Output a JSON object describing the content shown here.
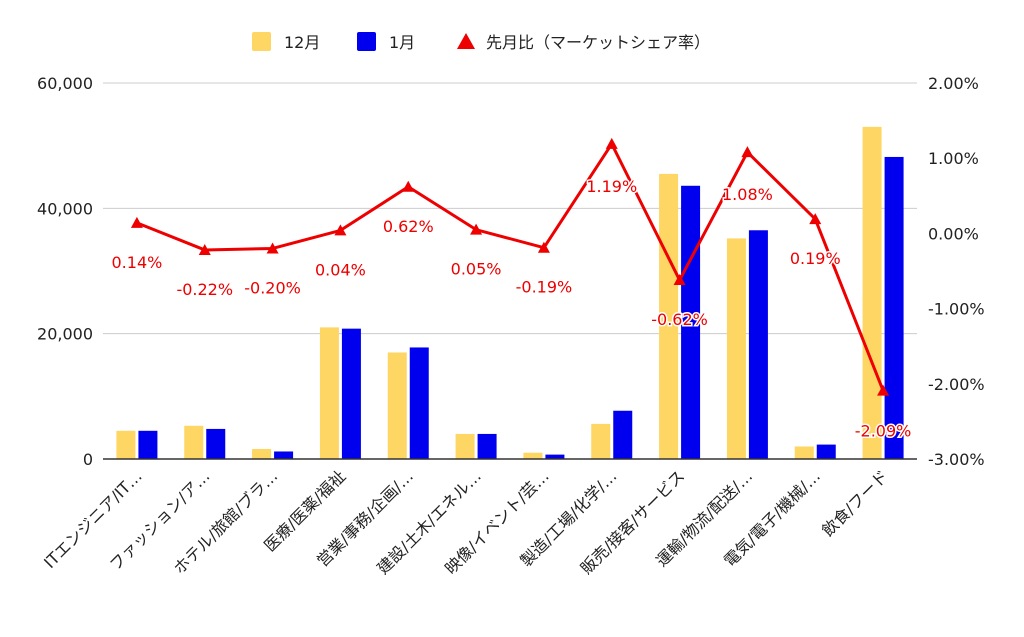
{
  "chart_data": {
    "type": "bar",
    "categories": [
      "ITエンジニア/IT…",
      "ファッション/ア…",
      "ホテル/旅館/ブラ…",
      "医療/医薬/福祉",
      "営業/事務/企画/…",
      "建設/土木/エネル…",
      "映像/イベント/芸…",
      "製造/工場/化学/…",
      "販売/接客/サービス",
      "運輸/物流/配送/…",
      "電気/電子/機械/…",
      "飲食/フード"
    ],
    "series": [
      {
        "name": "12月",
        "type": "bar",
        "axis": "left",
        "color": "#FDD663",
        "values": [
          4500,
          5300,
          1600,
          21000,
          17000,
          4000,
          1000,
          5600,
          45500,
          35200,
          2000,
          53000
        ]
      },
      {
        "name": "1月",
        "type": "bar",
        "axis": "left",
        "color": "#0000EE",
        "values": [
          4500,
          4800,
          1200,
          20800,
          17800,
          4000,
          700,
          7700,
          43600,
          36500,
          2300,
          48200
        ]
      },
      {
        "name": "先月比（マーケットシェア率）",
        "type": "line",
        "axis": "right",
        "color": "#EE0000",
        "values": [
          0.14,
          -0.22,
          -0.2,
          0.04,
          0.62,
          0.05,
          -0.19,
          1.19,
          -0.62,
          1.08,
          0.19,
          -2.09
        ],
        "labels": [
          "0.14%",
          "-0.22%",
          "-0.20%",
          "0.04%",
          "0.62%",
          "0.05%",
          "-0.19%",
          "1.19%",
          "-0.62%",
          "1.08%",
          "0.19%",
          "-2.09%"
        ]
      }
    ],
    "y_left": {
      "min": 0,
      "max": 60000,
      "ticks": [
        0,
        20000,
        40000,
        60000
      ],
      "tick_labels": [
        "0",
        "20,000",
        "40,000",
        "60,000"
      ]
    },
    "y_right": {
      "min": -3,
      "max": 2,
      "ticks": [
        2,
        1,
        0,
        -1,
        -2,
        -3
      ],
      "tick_labels": [
        "2.00%",
        "1.00%",
        "0.00%",
        "-1.00%",
        "-2.00%",
        "-3.00%"
      ]
    },
    "legend_position": "top",
    "grid": true
  }
}
